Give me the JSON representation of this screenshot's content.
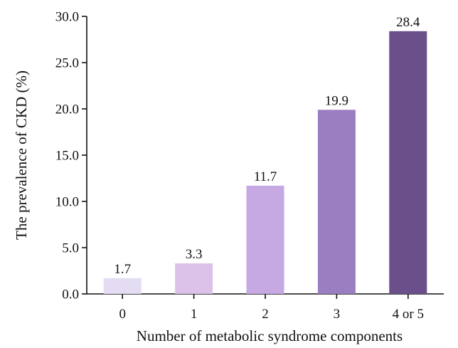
{
  "chart_data": {
    "type": "bar",
    "categories": [
      "0",
      "1",
      "2",
      "3",
      "4 or 5"
    ],
    "values": [
      1.7,
      3.3,
      11.7,
      19.9,
      28.4
    ],
    "value_labels": [
      "1.7",
      "3.3",
      "11.7",
      "19.9",
      "28.4"
    ],
    "colors": [
      "#e3dcf3",
      "#dcc2e8",
      "#c6a8e3",
      "#9b7ec1",
      "#6a4f8a"
    ],
    "title": "",
    "xlabel": "Number of metabolic syndrome components",
    "ylabel": "The prevalence of CKD (%)",
    "ylim": [
      0,
      30
    ],
    "yticks": [
      0,
      5,
      10,
      15,
      20,
      25,
      30
    ],
    "ytick_labels": [
      "0.0",
      "5.0",
      "10.0",
      "15.0",
      "20.0",
      "25.0",
      "30.0"
    ],
    "grid": false,
    "legend": "none"
  }
}
